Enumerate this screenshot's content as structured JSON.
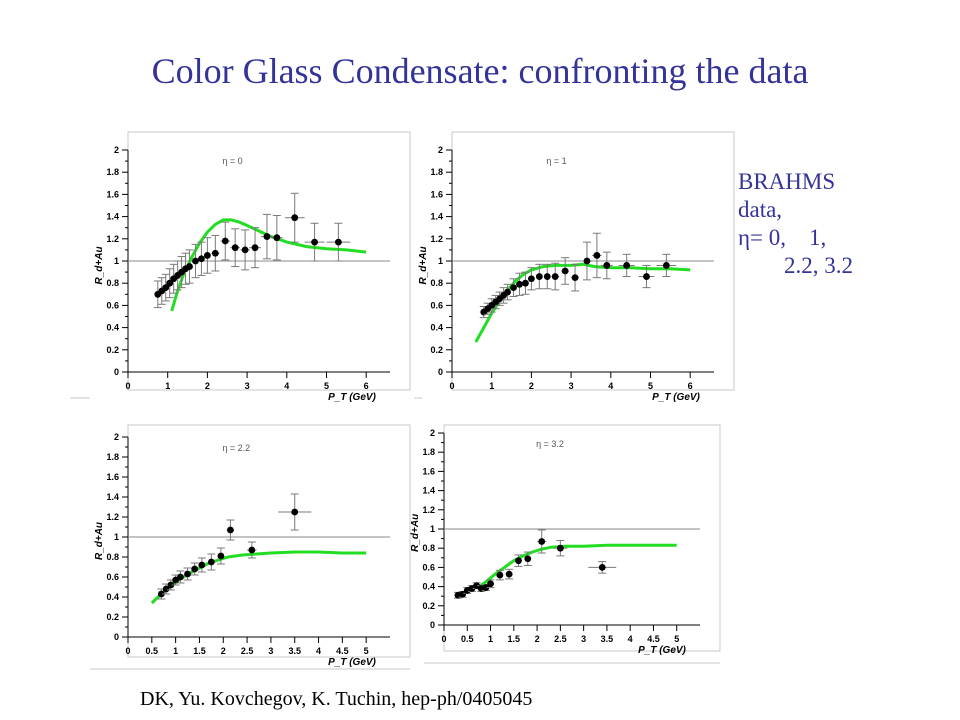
{
  "title": "Color Glass Condensate: confronting the data",
  "side_note": [
    "BRAHMS",
    "data,",
    "η= 0,    1,",
    "        2.2, 3.2"
  ],
  "citation": "DK, Yu. Kovchegov, K. Tuchin, hep-ph/0405045",
  "colors": {
    "title": "#333399",
    "theory": "#22dd22",
    "reference_line": "#888888",
    "points": "#000000",
    "errors": "#7a7a7a"
  },
  "chart_data": [
    {
      "type": "scatter",
      "panel": "eta-0",
      "annotation": "η = 0",
      "xlabel": "P_T  (GeV)",
      "ylabel": "R_d+Au",
      "xlim": [
        0,
        6.6
      ],
      "ylim": [
        0,
        2
      ],
      "x_ticks": [
        "0",
        "1",
        "2",
        "3",
        "4",
        "5",
        "6"
      ],
      "y_ticks": [
        "0",
        "0.2",
        "0.4",
        "0.6",
        "0.8",
        "1",
        "1.2",
        "1.4",
        "1.6",
        "1.8",
        "2"
      ],
      "reference_y": 1,
      "grid": false,
      "series": [
        {
          "role": "data",
          "points": [
            {
              "x": 0.75,
              "y": 0.7,
              "ey": 0.12,
              "ex": 0.05
            },
            {
              "x": 0.85,
              "y": 0.73,
              "ey": 0.12,
              "ex": 0.05
            },
            {
              "x": 0.95,
              "y": 0.76,
              "ey": 0.12,
              "ex": 0.05
            },
            {
              "x": 1.05,
              "y": 0.8,
              "ey": 0.13,
              "ex": 0.05
            },
            {
              "x": 1.15,
              "y": 0.84,
              "ey": 0.13,
              "ex": 0.05
            },
            {
              "x": 1.25,
              "y": 0.87,
              "ey": 0.13,
              "ex": 0.05
            },
            {
              "x": 1.35,
              "y": 0.9,
              "ey": 0.14,
              "ex": 0.05
            },
            {
              "x": 1.45,
              "y": 0.93,
              "ey": 0.14,
              "ex": 0.05
            },
            {
              "x": 1.55,
              "y": 0.95,
              "ey": 0.15,
              "ex": 0.05
            },
            {
              "x": 1.7,
              "y": 1.0,
              "ey": 0.15,
              "ex": 0.08
            },
            {
              "x": 1.85,
              "y": 1.02,
              "ey": 0.15,
              "ex": 0.08
            },
            {
              "x": 2.0,
              "y": 1.05,
              "ey": 0.16,
              "ex": 0.08
            },
            {
              "x": 2.2,
              "y": 1.07,
              "ey": 0.16,
              "ex": 0.1
            },
            {
              "x": 2.45,
              "y": 1.18,
              "ey": 0.17,
              "ex": 0.12
            },
            {
              "x": 2.7,
              "y": 1.12,
              "ey": 0.17,
              "ex": 0.12
            },
            {
              "x": 2.95,
              "y": 1.1,
              "ey": 0.18,
              "ex": 0.12
            },
            {
              "x": 3.2,
              "y": 1.12,
              "ey": 0.18,
              "ex": 0.15
            },
            {
              "x": 3.5,
              "y": 1.22,
              "ey": 0.2,
              "ex": 0.15
            },
            {
              "x": 3.75,
              "y": 1.21,
              "ey": 0.2,
              "ex": 0.15
            },
            {
              "x": 4.2,
              "y": 1.39,
              "ey": 0.22,
              "ex": 0.25
            },
            {
              "x": 4.7,
              "y": 1.17,
              "ey": 0.17,
              "ex": 0.25
            },
            {
              "x": 5.3,
              "y": 1.17,
              "ey": 0.17,
              "ex": 0.3
            }
          ]
        },
        {
          "role": "theory",
          "x": [
            1.1,
            1.25,
            1.4,
            1.6,
            1.8,
            2.0,
            2.2,
            2.4,
            2.6,
            2.8,
            3.0,
            3.3,
            3.6,
            4.0,
            4.5,
            5.0,
            5.5,
            6.0
          ],
          "y": [
            0.55,
            0.73,
            0.88,
            1.03,
            1.16,
            1.26,
            1.33,
            1.37,
            1.37,
            1.35,
            1.32,
            1.27,
            1.22,
            1.17,
            1.13,
            1.11,
            1.1,
            1.08
          ]
        }
      ]
    },
    {
      "type": "scatter",
      "panel": "eta-1",
      "annotation": "η = 1",
      "xlabel": "P_T  (GeV)",
      "ylabel": "R_d+Au",
      "xlim": [
        0,
        6.6
      ],
      "ylim": [
        0,
        2
      ],
      "x_ticks": [
        "0",
        "1",
        "2",
        "3",
        "4",
        "5",
        "6"
      ],
      "y_ticks": [
        "0",
        "0.2",
        "0.4",
        "0.6",
        "0.8",
        "1",
        "1.2",
        "1.4",
        "1.6",
        "1.8",
        "2"
      ],
      "reference_y": 1,
      "grid": false,
      "series": [
        {
          "role": "data",
          "points": [
            {
              "x": 0.8,
              "y": 0.54,
              "ey": 0.05,
              "ex": 0.05
            },
            {
              "x": 0.9,
              "y": 0.57,
              "ey": 0.05,
              "ex": 0.05
            },
            {
              "x": 1.0,
              "y": 0.6,
              "ey": 0.06,
              "ex": 0.05
            },
            {
              "x": 1.1,
              "y": 0.63,
              "ey": 0.06,
              "ex": 0.05
            },
            {
              "x": 1.2,
              "y": 0.66,
              "ey": 0.06,
              "ex": 0.05
            },
            {
              "x": 1.3,
              "y": 0.69,
              "ey": 0.07,
              "ex": 0.05
            },
            {
              "x": 1.4,
              "y": 0.72,
              "ey": 0.07,
              "ex": 0.05
            },
            {
              "x": 1.55,
              "y": 0.76,
              "ey": 0.08,
              "ex": 0.06
            },
            {
              "x": 1.7,
              "y": 0.79,
              "ey": 0.1,
              "ex": 0.06
            },
            {
              "x": 1.85,
              "y": 0.8,
              "ey": 0.1,
              "ex": 0.07
            },
            {
              "x": 2.0,
              "y": 0.84,
              "ey": 0.1,
              "ex": 0.07
            },
            {
              "x": 2.2,
              "y": 0.86,
              "ey": 0.11,
              "ex": 0.08
            },
            {
              "x": 2.4,
              "y": 0.86,
              "ey": 0.11,
              "ex": 0.08
            },
            {
              "x": 2.6,
              "y": 0.86,
              "ey": 0.12,
              "ex": 0.1
            },
            {
              "x": 2.85,
              "y": 0.91,
              "ey": 0.12,
              "ex": 0.1
            },
            {
              "x": 3.1,
              "y": 0.85,
              "ey": 0.12,
              "ex": 0.1
            },
            {
              "x": 3.4,
              "y": 1.0,
              "ey": 0.17,
              "ex": 0.12
            },
            {
              "x": 3.65,
              "y": 1.05,
              "ey": 0.2,
              "ex": 0.12
            },
            {
              "x": 3.9,
              "y": 0.96,
              "ey": 0.12,
              "ex": 0.15
            },
            {
              "x": 4.4,
              "y": 0.96,
              "ey": 0.1,
              "ex": 0.2
            },
            {
              "x": 4.9,
              "y": 0.86,
              "ey": 0.1,
              "ex": 0.2
            },
            {
              "x": 5.4,
              "y": 0.96,
              "ey": 0.1,
              "ex": 0.25
            }
          ]
        },
        {
          "role": "theory",
          "x": [
            0.6,
            0.8,
            1.0,
            1.2,
            1.4,
            1.6,
            1.8,
            2.0,
            2.3,
            2.6,
            3.0,
            3.3,
            3.6,
            4.0,
            4.5,
            5.0,
            5.5,
            6.0
          ],
          "y": [
            0.27,
            0.4,
            0.53,
            0.64,
            0.74,
            0.82,
            0.88,
            0.92,
            0.95,
            0.96,
            0.96,
            0.97,
            0.95,
            0.94,
            0.94,
            0.93,
            0.93,
            0.92
          ]
        }
      ]
    },
    {
      "type": "scatter",
      "panel": "eta-2.2",
      "annotation": "η = 2.2",
      "xlabel": "P_T  (GeV)",
      "ylabel": "R_d+Au",
      "xlim": [
        0,
        5.5
      ],
      "ylim": [
        0,
        2
      ],
      "x_ticks": [
        "0",
        "0.5",
        "1",
        "1.5",
        "2",
        "2.5",
        "3",
        "3.5",
        "4",
        "4.5",
        "5"
      ],
      "y_ticks": [
        "0",
        "0.2",
        "0.4",
        "0.6",
        "0.8",
        "1",
        "1.2",
        "1.4",
        "1.6",
        "1.8",
        "2"
      ],
      "reference_y": 1,
      "grid": false,
      "series": [
        {
          "role": "data",
          "points": [
            {
              "x": 0.7,
              "y": 0.43,
              "ey": 0.05,
              "ex": 0.04
            },
            {
              "x": 0.8,
              "y": 0.48,
              "ey": 0.05,
              "ex": 0.04
            },
            {
              "x": 0.9,
              "y": 0.52,
              "ey": 0.05,
              "ex": 0.04
            },
            {
              "x": 1.0,
              "y": 0.57,
              "ey": 0.05,
              "ex": 0.04
            },
            {
              "x": 1.1,
              "y": 0.6,
              "ey": 0.06,
              "ex": 0.05
            },
            {
              "x": 1.25,
              "y": 0.63,
              "ey": 0.06,
              "ex": 0.05
            },
            {
              "x": 1.4,
              "y": 0.68,
              "ey": 0.06,
              "ex": 0.05
            },
            {
              "x": 1.55,
              "y": 0.72,
              "ey": 0.07,
              "ex": 0.05
            },
            {
              "x": 1.75,
              "y": 0.75,
              "ey": 0.08,
              "ex": 0.06
            },
            {
              "x": 1.95,
              "y": 0.81,
              "ey": 0.08,
              "ex": 0.07
            },
            {
              "x": 2.15,
              "y": 1.07,
              "ey": 0.1,
              "ex": 0.08
            },
            {
              "x": 2.6,
              "y": 0.87,
              "ey": 0.08,
              "ex": 0.1
            },
            {
              "x": 3.5,
              "y": 1.25,
              "ey": 0.18,
              "ex": 0.35
            }
          ]
        },
        {
          "role": "theory",
          "x": [
            0.5,
            0.7,
            0.9,
            1.1,
            1.3,
            1.5,
            1.7,
            1.9,
            2.1,
            2.4,
            2.7,
            3.0,
            3.5,
            4.0,
            4.5,
            5.0
          ],
          "y": [
            0.34,
            0.43,
            0.51,
            0.58,
            0.64,
            0.69,
            0.74,
            0.77,
            0.8,
            0.82,
            0.83,
            0.84,
            0.85,
            0.85,
            0.84,
            0.84
          ]
        }
      ]
    },
    {
      "type": "scatter",
      "panel": "eta-3.2",
      "annotation": "η = 3.2",
      "xlabel": "P_T  (GeV)",
      "ylabel": "R_d+Au",
      "xlim": [
        0,
        5.5
      ],
      "ylim": [
        0,
        2
      ],
      "x_ticks": [
        "0",
        "0.5",
        "1",
        "1.5",
        "2",
        "2.5",
        "3",
        "3.5",
        "4",
        "4.5",
        "5"
      ],
      "y_ticks": [
        "0",
        "0.2",
        "0.4",
        "0.6",
        "0.8",
        "1",
        "1.2",
        "1.4",
        "1.6",
        "1.8",
        "2"
      ],
      "reference_y": 1,
      "grid": false,
      "series": [
        {
          "role": "data",
          "points": [
            {
              "x": 0.3,
              "y": 0.31,
              "ey": 0.03,
              "ex": 0.03
            },
            {
              "x": 0.4,
              "y": 0.32,
              "ey": 0.03,
              "ex": 0.03
            },
            {
              "x": 0.5,
              "y": 0.36,
              "ey": 0.03,
              "ex": 0.03
            },
            {
              "x": 0.6,
              "y": 0.38,
              "ey": 0.03,
              "ex": 0.03
            },
            {
              "x": 0.7,
              "y": 0.41,
              "ey": 0.03,
              "ex": 0.03
            },
            {
              "x": 0.8,
              "y": 0.38,
              "ey": 0.03,
              "ex": 0.03
            },
            {
              "x": 0.9,
              "y": 0.39,
              "ey": 0.03,
              "ex": 0.03
            },
            {
              "x": 1.0,
              "y": 0.43,
              "ey": 0.04,
              "ex": 0.04
            },
            {
              "x": 1.2,
              "y": 0.52,
              "ey": 0.05,
              "ex": 0.05
            },
            {
              "x": 1.4,
              "y": 0.53,
              "ey": 0.05,
              "ex": 0.05
            },
            {
              "x": 1.6,
              "y": 0.67,
              "ey": 0.06,
              "ex": 0.06
            },
            {
              "x": 1.8,
              "y": 0.69,
              "ey": 0.07,
              "ex": 0.06
            },
            {
              "x": 2.1,
              "y": 0.87,
              "ey": 0.12,
              "ex": 0.1
            },
            {
              "x": 2.5,
              "y": 0.8,
              "ey": 0.08,
              "ex": 0.15
            },
            {
              "x": 3.4,
              "y": 0.6,
              "ey": 0.06,
              "ex": 0.3
            }
          ]
        },
        {
          "role": "theory",
          "x": [
            0.7,
            0.9,
            1.1,
            1.3,
            1.5,
            1.7,
            1.9,
            2.1,
            2.3,
            2.6,
            3.0,
            3.5,
            4.0,
            4.5,
            5.0
          ],
          "y": [
            0.38,
            0.45,
            0.53,
            0.6,
            0.67,
            0.72,
            0.76,
            0.79,
            0.81,
            0.82,
            0.82,
            0.83,
            0.83,
            0.83,
            0.83
          ]
        }
      ]
    }
  ]
}
